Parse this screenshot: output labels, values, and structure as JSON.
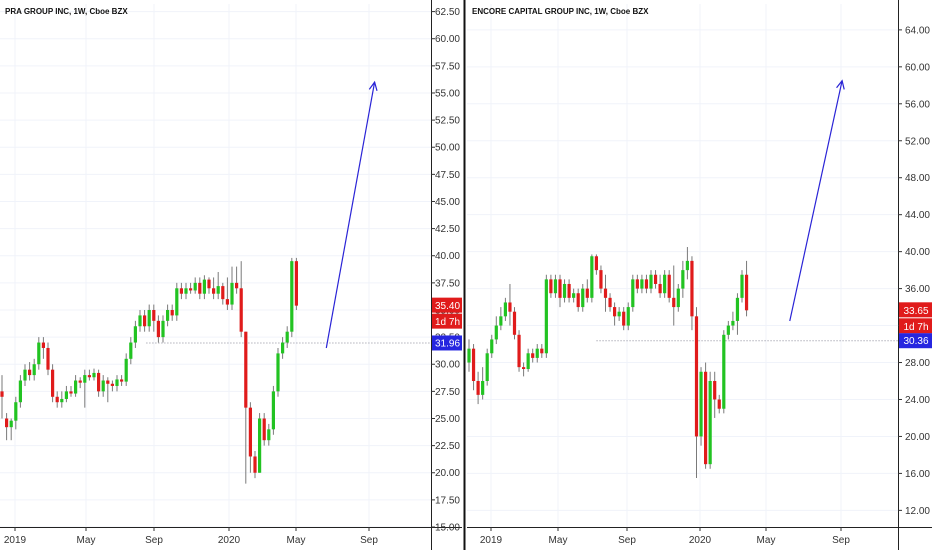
{
  "colors": {
    "up": "#22c322",
    "down": "#e01b1b",
    "arrow": "#2a24d6",
    "price_tag": "#e01b1b",
    "level_tag": "#2626e0",
    "grid": "#f0f3fa",
    "axis_text": "#333333",
    "divider": "#111111"
  },
  "chart_data": [
    {
      "type": "candlestick",
      "title": "PRA GROUP INC, 1W, Cboe BZX",
      "x_tick_labels": [
        "2019",
        "May",
        "Sep",
        "2020",
        "May",
        "Sep"
      ],
      "y_tick_labels": [
        "62.50",
        "60.00",
        "57.50",
        "55.00",
        "52.50",
        "50.00",
        "47.50",
        "45.00",
        "42.50",
        "40.00",
        "37.50",
        "35.00",
        "32.50",
        "30.00",
        "27.50",
        "25.00",
        "22.50",
        "20.00",
        "17.50",
        "15.00"
      ],
      "ylim": [
        15,
        63.2
      ],
      "grid": true,
      "last_price": 35.4,
      "last_price_label": "35.40",
      "countdown_label": "1d 7h",
      "level": 31.96,
      "level_label": "31.96",
      "arrow": {
        "from": [
          70.5,
          31.5
        ],
        "to": [
          81,
          56
        ]
      },
      "candles": [
        [
          27.5,
          27.0,
          25.0,
          29.0
        ],
        [
          25.0,
          24.2,
          23.0,
          25.5
        ],
        [
          24.2,
          24.8,
          23.0,
          25.0
        ],
        [
          24.8,
          26.5,
          24.0,
          27.0
        ],
        [
          26.5,
          28.5,
          26.0,
          29.0
        ],
        [
          28.5,
          29.5,
          28.0,
          30.0
        ],
        [
          29.5,
          29.0,
          28.5,
          30.2
        ],
        [
          29.0,
          30.0,
          28.5,
          30.5
        ],
        [
          30.0,
          32.0,
          29.5,
          32.5
        ],
        [
          32.0,
          31.5,
          30.5,
          32.5
        ],
        [
          31.5,
          29.5,
          29.0,
          32.0
        ],
        [
          29.5,
          27.0,
          26.5,
          30.0
        ],
        [
          27.0,
          26.5,
          26.0,
          27.5
        ],
        [
          26.5,
          26.8,
          26.0,
          27.5
        ],
        [
          26.8,
          27.5,
          26.5,
          28.0
        ],
        [
          27.5,
          27.3,
          27.0,
          28.0
        ],
        [
          27.3,
          28.5,
          27.0,
          29.0
        ],
        [
          28.5,
          28.3,
          27.8,
          28.8
        ],
        [
          28.3,
          29.0,
          26.0,
          29.5
        ],
        [
          29.0,
          28.8,
          28.5,
          29.5
        ],
        [
          28.8,
          29.2,
          28.5,
          29.6
        ],
        [
          29.2,
          27.5,
          27.0,
          29.5
        ],
        [
          27.5,
          28.5,
          27.0,
          29.0
        ],
        [
          28.5,
          28.2,
          26.5,
          28.8
        ],
        [
          28.2,
          28.0,
          27.5,
          28.5
        ],
        [
          28.0,
          28.6,
          27.5,
          29.0
        ],
        [
          28.6,
          28.4,
          28.0,
          29.0
        ],
        [
          28.4,
          30.5,
          28.0,
          31.0
        ],
        [
          30.5,
          32.0,
          30.0,
          32.5
        ],
        [
          32.0,
          33.5,
          31.5,
          34.0
        ],
        [
          33.5,
          34.5,
          33.0,
          35.0
        ],
        [
          34.5,
          33.5,
          33.0,
          35.0
        ],
        [
          33.5,
          35.0,
          33.0,
          35.5
        ],
        [
          35.0,
          34.0,
          33.0,
          35.5
        ],
        [
          34.0,
          32.5,
          32.0,
          34.5
        ],
        [
          32.5,
          34.0,
          32.0,
          34.5
        ],
        [
          34.0,
          35.0,
          33.5,
          35.5
        ],
        [
          35.0,
          34.5,
          34.0,
          35.5
        ],
        [
          34.5,
          37.0,
          34.0,
          37.5
        ],
        [
          37.0,
          36.5,
          36.0,
          37.5
        ],
        [
          36.5,
          37.0,
          36.0,
          37.5
        ],
        [
          37.0,
          36.8,
          36.5,
          37.5
        ],
        [
          36.8,
          37.5,
          36.5,
          38.0
        ],
        [
          37.5,
          36.5,
          36.0,
          38.0
        ],
        [
          36.5,
          37.8,
          36.0,
          38.2
        ],
        [
          37.8,
          37.0,
          36.5,
          38.0
        ],
        [
          37.0,
          36.5,
          36.0,
          38.0
        ],
        [
          36.5,
          37.2,
          36.0,
          38.5
        ],
        [
          37.2,
          36.0,
          35.5,
          37.5
        ],
        [
          36.0,
          35.5,
          35.0,
          38.0
        ],
        [
          35.5,
          37.5,
          35.0,
          39.0
        ],
        [
          37.5,
          37.0,
          36.5,
          39.0
        ],
        [
          37.0,
          33.0,
          32.5,
          39.5
        ],
        [
          33.0,
          26.0,
          19.0,
          33.0
        ],
        [
          26.0,
          21.5,
          20.0,
          26.5
        ],
        [
          21.5,
          20.0,
          19.5,
          22.0
        ],
        [
          20.0,
          25.0,
          20.0,
          25.5
        ],
        [
          25.0,
          23.0,
          22.5,
          25.5
        ],
        [
          23.0,
          24.0,
          22.5,
          24.5
        ],
        [
          24.0,
          27.5,
          23.5,
          28.0
        ],
        [
          27.5,
          31.0,
          27.0,
          31.5
        ],
        [
          31.0,
          32.0,
          30.5,
          32.5
        ],
        [
          32.0,
          33.0,
          31.5,
          33.5
        ],
        [
          33.0,
          39.5,
          32.5,
          39.8
        ],
        [
          39.5,
          35.4,
          35.0,
          39.8
        ]
      ]
    },
    {
      "type": "candlestick",
      "title": "ENCORE CAPITAL GROUP INC, 1W, Cboe BZX",
      "x_tick_labels": [
        "2019",
        "May",
        "Sep",
        "2020",
        "May",
        "Sep"
      ],
      "y_tick_labels": [
        "64.00",
        "60.00",
        "56.00",
        "52.00",
        "48.00",
        "44.00",
        "40.00",
        "36.00",
        "32.00",
        "28.00",
        "24.00",
        "20.00",
        "16.00",
        "12.00"
      ],
      "ylim": [
        10.2,
        66.8
      ],
      "grid": true,
      "last_price": 33.65,
      "last_price_label": "33.65",
      "countdown_label": "1d 7h",
      "level": 30.36,
      "level_label": "30.36",
      "arrow": {
        "from": [
          70.5,
          32.5
        ],
        "to": [
          82,
          58.5
        ]
      },
      "candles": [
        [
          28.0,
          29.5,
          27.0,
          30.5
        ],
        [
          29.5,
          26.0,
          25.0,
          30.0
        ],
        [
          26.0,
          24.5,
          23.5,
          27.0
        ],
        [
          24.5,
          26.0,
          24.0,
          27.5
        ],
        [
          26.0,
          29.0,
          25.5,
          29.5
        ],
        [
          29.0,
          30.5,
          28.5,
          31.0
        ],
        [
          30.5,
          32.0,
          30.0,
          33.0
        ],
        [
          32.0,
          33.0,
          31.5,
          34.0
        ],
        [
          33.0,
          34.5,
          32.5,
          35.0
        ],
        [
          34.5,
          33.5,
          32.0,
          36.5
        ],
        [
          33.5,
          31.0,
          30.5,
          34.0
        ],
        [
          31.0,
          27.5,
          27.0,
          31.5
        ],
        [
          27.5,
          27.3,
          26.5,
          28.0
        ],
        [
          27.3,
          29.0,
          27.0,
          29.5
        ],
        [
          29.0,
          28.5,
          28.0,
          29.5
        ],
        [
          28.5,
          29.5,
          28.0,
          30.0
        ],
        [
          29.5,
          29.0,
          28.5,
          30.0
        ],
        [
          29.0,
          37.0,
          28.5,
          37.5
        ],
        [
          37.0,
          35.5,
          35.0,
          37.5
        ],
        [
          35.5,
          37.0,
          35.0,
          37.5
        ],
        [
          37.0,
          35.0,
          34.0,
          37.5
        ],
        [
          35.0,
          36.5,
          34.5,
          37.0
        ],
        [
          36.5,
          35.0,
          34.5,
          37.0
        ],
        [
          35.0,
          35.5,
          34.5,
          36.0
        ],
        [
          35.5,
          34.0,
          33.5,
          36.0
        ],
        [
          34.0,
          36.0,
          33.5,
          36.5
        ],
        [
          36.0,
          35.0,
          34.5,
          37.0
        ],
        [
          35.0,
          39.5,
          34.5,
          39.7
        ],
        [
          39.5,
          38.0,
          37.5,
          39.7
        ],
        [
          38.0,
          36.0,
          35.5,
          38.5
        ],
        [
          36.0,
          35.0,
          33.5,
          37.5
        ],
        [
          35.0,
          34.0,
          33.5,
          35.5
        ],
        [
          34.0,
          33.0,
          32.0,
          34.5
        ],
        [
          33.0,
          33.5,
          32.5,
          34.0
        ],
        [
          33.5,
          32.0,
          31.5,
          34.0
        ],
        [
          32.0,
          34.0,
          31.5,
          34.5
        ],
        [
          34.0,
          37.0,
          33.5,
          37.5
        ],
        [
          37.0,
          36.0,
          35.5,
          37.5
        ],
        [
          36.0,
          37.0,
          35.5,
          37.5
        ],
        [
          37.0,
          36.0,
          35.5,
          37.5
        ],
        [
          36.0,
          37.5,
          35.5,
          38.0
        ],
        [
          37.5,
          36.5,
          36.0,
          38.0
        ],
        [
          36.5,
          35.5,
          35.0,
          37.5
        ],
        [
          35.5,
          37.5,
          35.0,
          38.0
        ],
        [
          37.5,
          35.0,
          34.5,
          38.0
        ],
        [
          35.0,
          34.0,
          32.0,
          38.5
        ],
        [
          34.0,
          36.0,
          33.5,
          36.5
        ],
        [
          36.0,
          38.0,
          35.0,
          39.0
        ],
        [
          38.0,
          39.0,
          37.0,
          40.5
        ],
        [
          39.0,
          33.0,
          31.5,
          39.5
        ],
        [
          33.0,
          20.0,
          15.5,
          34.0
        ],
        [
          20.0,
          27.0,
          19.0,
          27.5
        ],
        [
          27.0,
          17.0,
          16.5,
          28.0
        ],
        [
          17.0,
          26.0,
          16.5,
          27.0
        ],
        [
          26.0,
          24.0,
          22.0,
          27.0
        ],
        [
          24.0,
          23.0,
          22.5,
          24.5
        ],
        [
          23.0,
          31.0,
          22.5,
          31.5
        ],
        [
          31.0,
          32.0,
          30.5,
          32.5
        ],
        [
          32.0,
          32.5,
          31.5,
          33.5
        ],
        [
          32.5,
          35.0,
          31.0,
          35.5
        ],
        [
          35.0,
          37.5,
          34.5,
          38.0
        ],
        [
          37.5,
          33.65,
          33.0,
          39.0
        ]
      ]
    }
  ]
}
